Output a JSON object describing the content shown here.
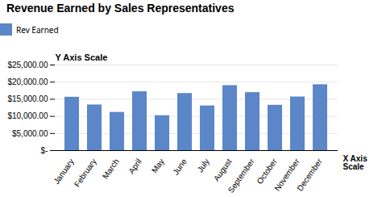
{
  "chart_data": {
    "type": "bar",
    "title": "Revenue Earned by Sales Representatives",
    "categories": [
      "January",
      "February",
      "March",
      "April",
      "May",
      "June",
      "July",
      "August",
      "September",
      "October",
      "November",
      "December"
    ],
    "series": [
      {
        "name": "Rev Earned",
        "color": "#5B86C8",
        "values": [
          15591,
          13338,
          11167,
          17196,
          10213,
          16687,
          13056,
          18995,
          16945,
          13248,
          15672,
          19250
        ]
      }
    ],
    "ylim": [
      0,
      25000
    ],
    "yticks": [
      {
        "value": 0,
        "label": "$-"
      },
      {
        "value": 5000,
        "label": "$5,000.00"
      },
      {
        "value": 10000,
        "label": "$10,000.00"
      },
      {
        "value": 15000,
        "label": "$15,000.00"
      },
      {
        "value": 20000,
        "label": "$20,000.00"
      },
      {
        "value": 25000,
        "label": "$25,000.00"
      }
    ],
    "grid": true,
    "legend": "top",
    "annotations": [
      "Y Axis Scale",
      "X Axis\nScale"
    ]
  }
}
